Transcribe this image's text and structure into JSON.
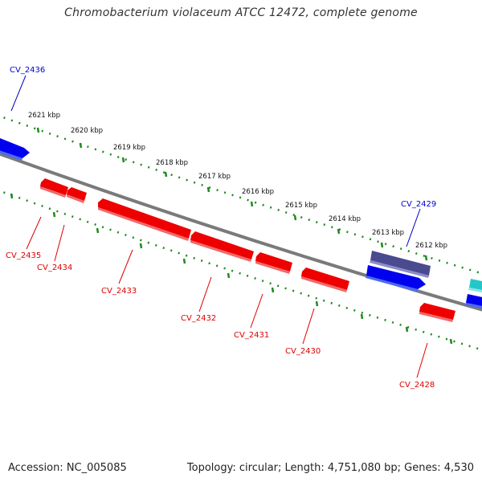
{
  "title": "Chromobacterium violaceum ATCC 12472, complete genome",
  "footer": {
    "accession": "Accession: NC_005085",
    "summary": "Topology: circular; Length: 4,751,080 bp; Genes: 4,530"
  },
  "colors": {
    "backbone": "#7a7a7a",
    "ruler": "#1f8a1f",
    "forward_gene": "#0000ee",
    "reverse_gene": "#ee0000",
    "highlight_gene": "#4a4a90",
    "partial_gene": "#22c8c8",
    "forward_label": "#0000cc",
    "reverse_label": "#dd0000"
  },
  "kbp_labels": [
    "2621 kbp",
    "2620 kbp",
    "2619 kbp",
    "2618 kbp",
    "2617 kbp",
    "2616 kbp",
    "2615 kbp",
    "2614 kbp",
    "2613 kbp",
    "2612 kbp"
  ],
  "genes": {
    "cv2436": "CV_2436",
    "cv2435": "CV_2435",
    "cv2434": "CV_2434",
    "cv2433": "CV_2433",
    "cv2432": "CV_2432",
    "cv2431": "CV_2431",
    "cv2430": "CV_2430",
    "cv2429": "CV_2429",
    "cv2428": "CV_2428"
  }
}
